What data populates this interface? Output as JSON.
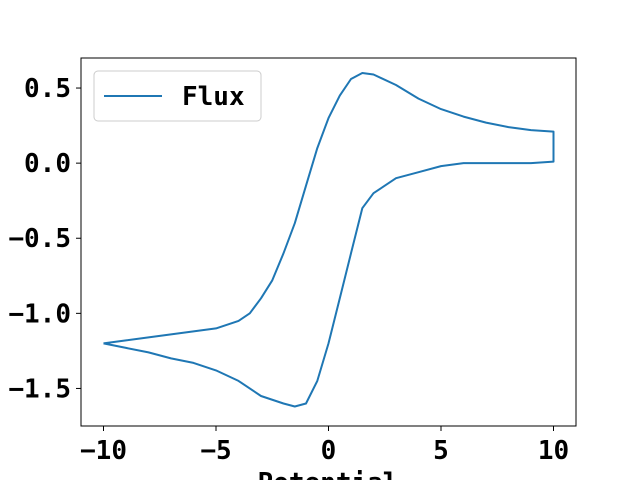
{
  "chart_data": {
    "type": "line",
    "title": "",
    "xlabel": "Potential",
    "ylabel": "",
    "xlim": [
      -11,
      11
    ],
    "ylim": [
      -1.75,
      0.7
    ],
    "xticks": [
      -10,
      -5,
      0,
      5,
      10
    ],
    "xtick_labels": [
      "−10",
      "−5",
      "0",
      "5",
      "10"
    ],
    "yticks": [
      0.5,
      0.0,
      -0.5,
      -1.0,
      -1.5
    ],
    "ytick_labels": [
      "0.5",
      "0.0",
      "−0.5",
      "−1.0",
      "−1.5"
    ],
    "grid": false,
    "legend_position": "upper-left",
    "series": [
      {
        "name": "Flux",
        "color": "#1f77b4",
        "x": [
          -10,
          -9,
          -8,
          -7,
          -6,
          -5,
          -4,
          -3.5,
          -3,
          -2.5,
          -2,
          -1.5,
          -1,
          -0.5,
          0,
          0.5,
          1,
          1.5,
          2,
          3,
          4,
          5,
          6,
          7,
          8,
          9,
          10,
          10,
          9,
          8,
          7,
          6,
          5,
          4,
          3,
          2,
          1.5,
          1,
          0.5,
          0,
          -0.5,
          -1,
          -1.5,
          -2,
          -3,
          -4,
          -5,
          -6,
          -7,
          -8,
          -9,
          -10
        ],
        "y": [
          -1.2,
          -1.18,
          -1.16,
          -1.14,
          -1.12,
          -1.1,
          -1.05,
          -1.0,
          -0.9,
          -0.78,
          -0.6,
          -0.4,
          -0.15,
          0.1,
          0.3,
          0.45,
          0.56,
          0.6,
          0.59,
          0.52,
          0.43,
          0.36,
          0.31,
          0.27,
          0.24,
          0.22,
          0.21,
          0.01,
          0.0,
          0.0,
          0.0,
          0.0,
          -0.02,
          -0.06,
          -0.1,
          -0.2,
          -0.3,
          -0.6,
          -0.9,
          -1.2,
          -1.45,
          -1.6,
          -1.62,
          -1.6,
          -1.55,
          -1.45,
          -1.38,
          -1.33,
          -1.3,
          -1.26,
          -1.23,
          -1.2
        ]
      }
    ]
  }
}
